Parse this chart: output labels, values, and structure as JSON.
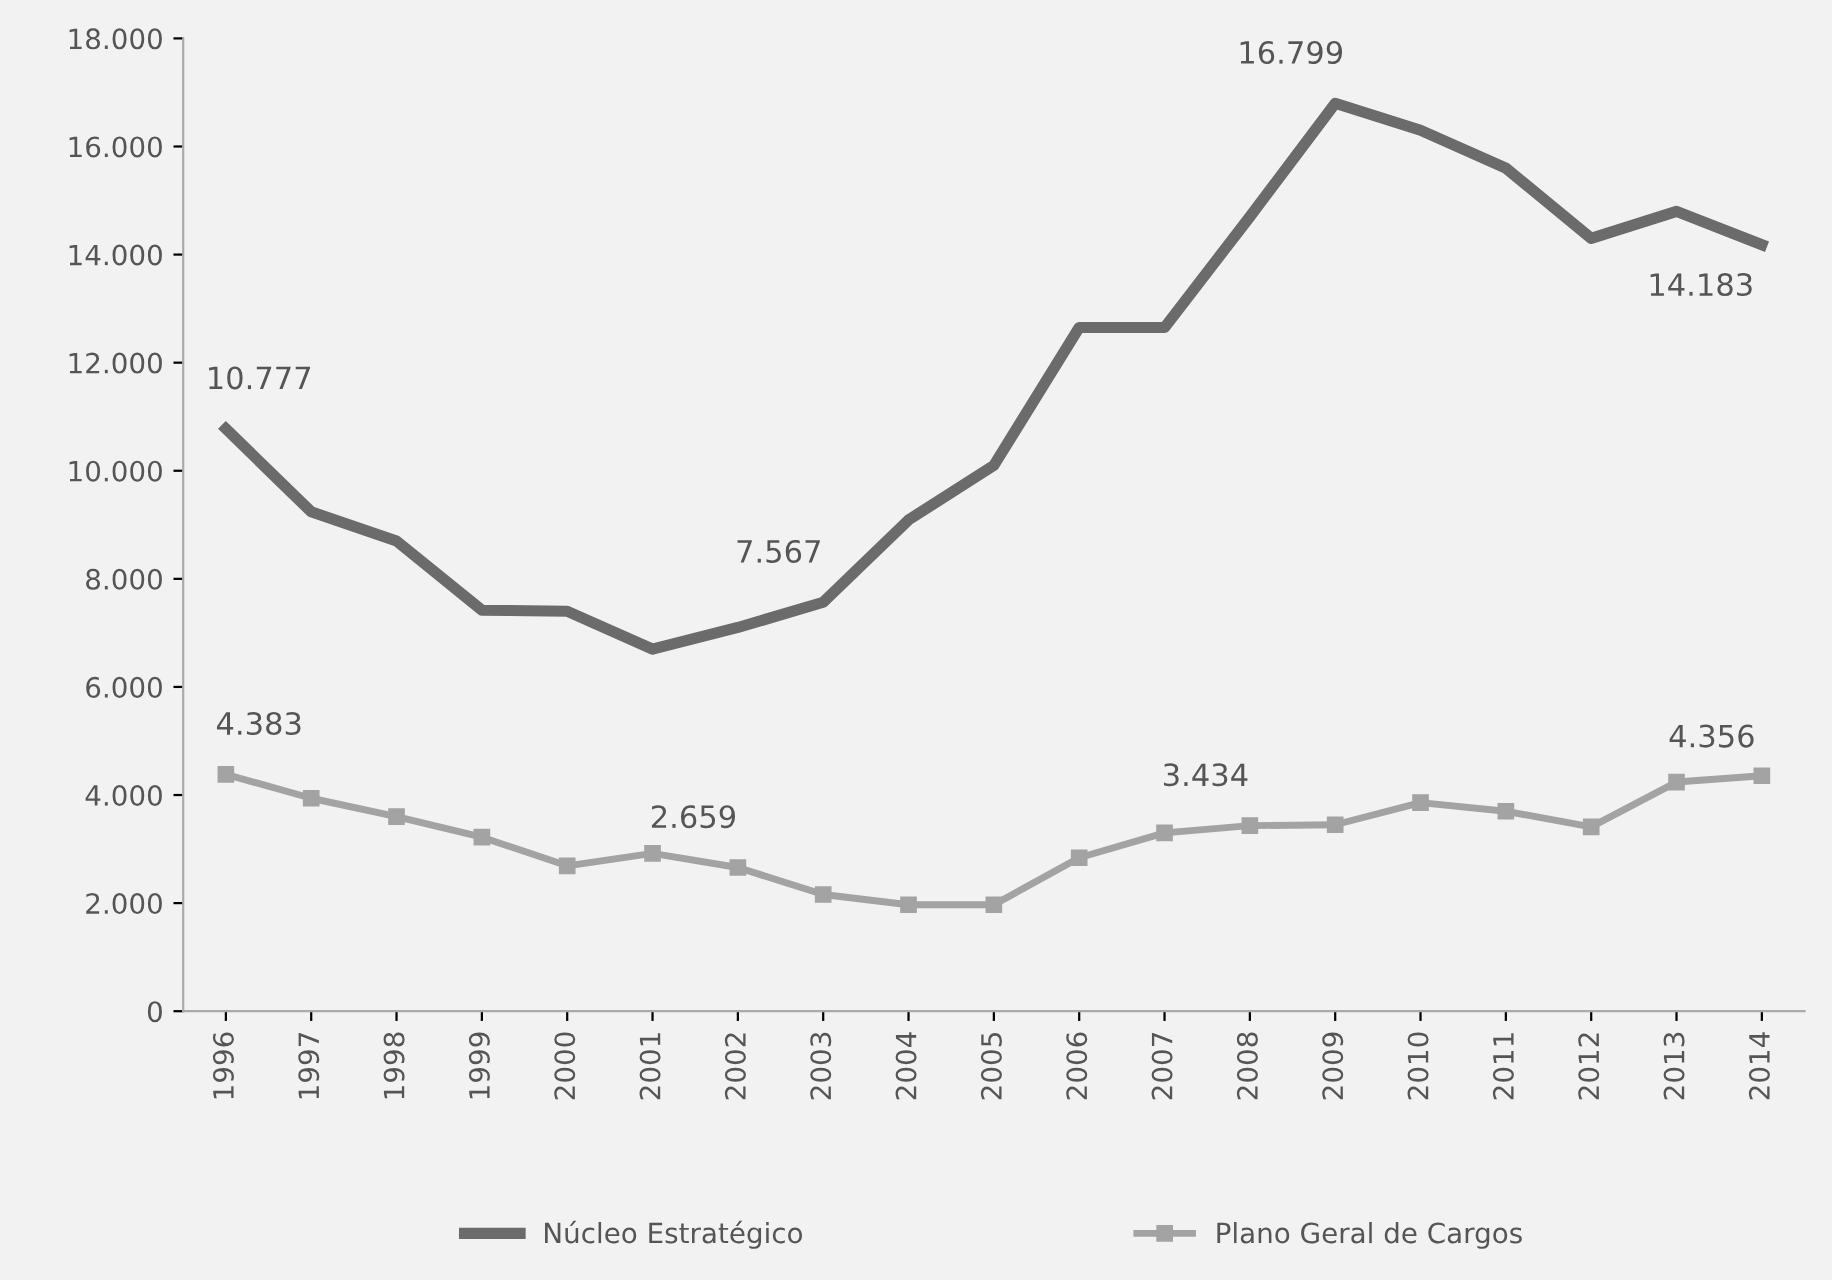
{
  "chart_data": {
    "type": "line",
    "categories": [
      "1996",
      "1997",
      "1998",
      "1999",
      "2000",
      "2001",
      "2002",
      "2003",
      "2004",
      "2005",
      "2006",
      "2007",
      "2008",
      "2009",
      "2010",
      "2011",
      "2012",
      "2013",
      "2014"
    ],
    "series": [
      {
        "name": "Núcleo Estratégico",
        "color": "#6b6b6b",
        "marker": "none",
        "values": [
          10777,
          9240,
          8700,
          7420,
          7400,
          6700,
          7100,
          7567,
          9090,
          10100,
          12650,
          12650,
          14700,
          16799,
          16300,
          15600,
          14300,
          14800,
          14183
        ],
        "value_labels": [
          "10.777",
          null,
          null,
          null,
          null,
          null,
          null,
          "7.567",
          null,
          null,
          null,
          null,
          null,
          "16.799",
          null,
          null,
          null,
          null,
          "14.183"
        ]
      },
      {
        "name": "Plano Geral de Cargos",
        "color": "#a3a3a3",
        "marker": "square",
        "values": [
          4383,
          3940,
          3600,
          3220,
          2690,
          2920,
          2659,
          2160,
          1970,
          1970,
          2840,
          3300,
          3434,
          3450,
          3860,
          3700,
          3410,
          4240,
          4356
        ],
        "value_labels": [
          "4.383",
          null,
          null,
          null,
          null,
          null,
          "2.659",
          null,
          null,
          null,
          null,
          null,
          "3.434",
          null,
          null,
          null,
          null,
          null,
          "4.356"
        ]
      }
    ],
    "ylim": [
      0,
      18000
    ],
    "yticks": [
      0,
      {
        "value": 2000,
        "label": "2.000"
      },
      {
        "value": 4000,
        "label": "4.000"
      },
      {
        "value": 6000,
        "label": "6.000"
      },
      {
        "value": 8000,
        "label": "8.000"
      },
      {
        "value": 10000,
        "label": "10.000"
      },
      {
        "value": 12000,
        "label": "12.000"
      },
      {
        "value": 14000,
        "label": "14.000"
      },
      {
        "value": 16000,
        "label": "16.000"
      },
      {
        "value": 18000,
        "label": "18.000"
      }
    ],
    "grid": false,
    "legend": "bottom"
  }
}
